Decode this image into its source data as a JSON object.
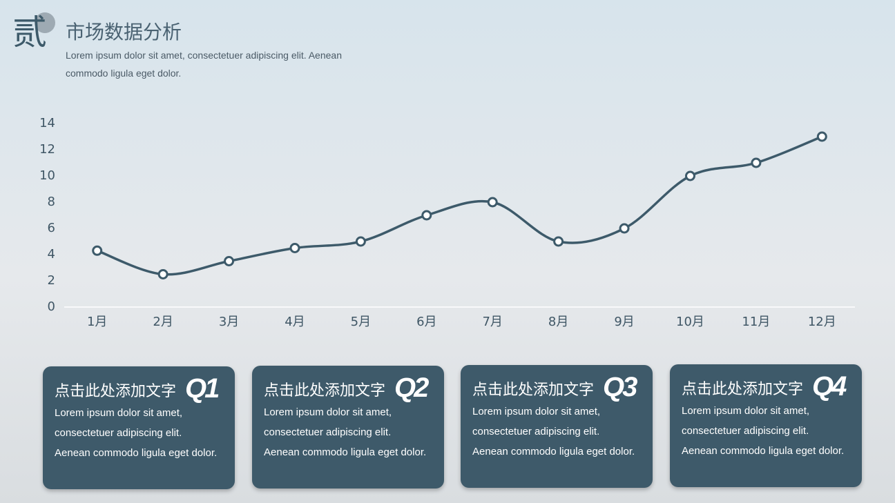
{
  "header": {
    "badge": "贰",
    "title": "市场数据分析",
    "subtitle": [
      "Lorem ipsum dolor sit amet, consectetuer adipiscing elit. Aenean",
      "commodo ligula eget dolor."
    ]
  },
  "chart_data": {
    "type": "line",
    "categories": [
      "1月",
      "2月",
      "3月",
      "4月",
      "5月",
      "6月",
      "7月",
      "8月",
      "9月",
      "10月",
      "11月",
      "12月"
    ],
    "values": [
      4.3,
      2.5,
      3.5,
      4.5,
      5,
      7,
      8,
      5,
      6,
      10,
      11,
      13
    ],
    "color": "#3d5a6a",
    "smooth": true,
    "ylim": [
      0,
      14
    ],
    "yticks": [
      0,
      2,
      4,
      6,
      8,
      10,
      12,
      14
    ],
    "grid": false
  },
  "cards": [
    {
      "heading": "点击此处添加文字",
      "label": "Q1",
      "lines": [
        "Lorem ipsum dolor sit amet,",
        "consectetuer adipiscing elit.",
        "Aenean commodo ligula eget dolor."
      ]
    },
    {
      "heading": "点击此处添加文字",
      "label": "Q2",
      "lines": [
        "Lorem ipsum dolor sit amet,",
        "consectetuer adipiscing elit.",
        "Aenean commodo ligula eget dolor."
      ]
    },
    {
      "heading": "点击此处添加文字",
      "label": "Q3",
      "lines": [
        "Lorem ipsum dolor sit amet,",
        "consectetuer adipiscing elit.",
        "Aenean commodo ligula eget dolor."
      ]
    },
    {
      "heading": "点击此处添加文字",
      "label": "Q4",
      "lines": [
        "Lorem ipsum dolor sit amet,",
        "consectetuer adipiscing elit.",
        "Aenean commodo ligula eget dolor."
      ]
    }
  ]
}
